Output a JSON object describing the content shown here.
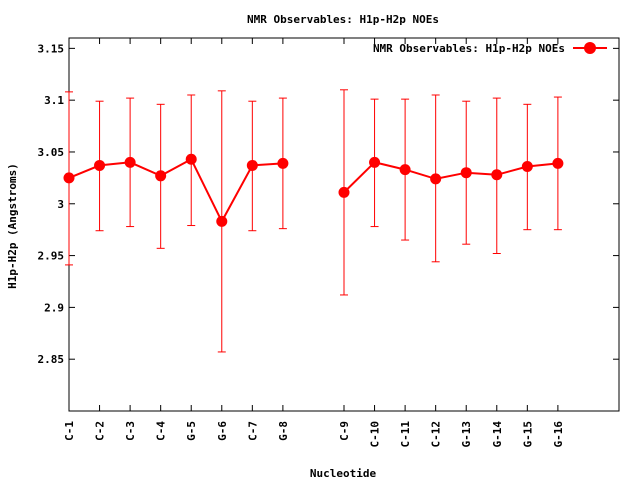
{
  "chart_data": {
    "type": "line",
    "title": "NMR Observables: H1p-H2p NOEs",
    "xlabel": "Nucleotide",
    "ylabel": "H1p-H2p (Angstroms)",
    "ylim": [
      2.8,
      3.16
    ],
    "yticks": [
      {
        "value": 2.85,
        "label": "2.85"
      },
      {
        "value": 2.9,
        "label": "2.9"
      },
      {
        "value": 2.95,
        "label": "2.95"
      },
      {
        "value": 3.0,
        "label": "3"
      },
      {
        "value": 3.05,
        "label": "3.05"
      },
      {
        "value": 3.1,
        "label": "3.1"
      },
      {
        "value": 3.15,
        "label": "3.15"
      }
    ],
    "xlim": [
      1,
      19
    ],
    "grid": false,
    "legend_position": "top-right",
    "color": "#ff0000",
    "series": [
      {
        "name": "NMR Observables: H1p-H2p NOEs",
        "segments": [
          {
            "points": [
              {
                "x": 1,
                "label": "C-1",
                "y": 3.025,
                "low": 2.941,
                "high": 3.108
              },
              {
                "x": 2,
                "label": "C-2",
                "y": 3.037,
                "low": 2.974,
                "high": 3.099
              },
              {
                "x": 3,
                "label": "C-3",
                "y": 3.04,
                "low": 2.978,
                "high": 3.102
              },
              {
                "x": 4,
                "label": "C-4",
                "y": 3.027,
                "low": 2.957,
                "high": 3.096
              },
              {
                "x": 5,
                "label": "G-5",
                "y": 3.043,
                "low": 2.979,
                "high": 3.105
              },
              {
                "x": 6,
                "label": "G-6",
                "y": 2.983,
                "low": 2.857,
                "high": 3.109
              },
              {
                "x": 7,
                "label": "C-7",
                "y": 3.037,
                "low": 2.974,
                "high": 3.099
              },
              {
                "x": 8,
                "label": "G-8",
                "y": 3.039,
                "low": 2.976,
                "high": 3.102
              }
            ]
          },
          {
            "points": [
              {
                "x": 10,
                "label": "C-9",
                "y": 3.011,
                "low": 2.912,
                "high": 3.11
              },
              {
                "x": 11,
                "label": "C-10",
                "y": 3.04,
                "low": 2.978,
                "high": 3.101
              },
              {
                "x": 12,
                "label": "C-11",
                "y": 3.033,
                "low": 2.965,
                "high": 3.101
              },
              {
                "x": 13,
                "label": "C-12",
                "y": 3.024,
                "low": 2.944,
                "high": 3.105
              },
              {
                "x": 14,
                "label": "G-13",
                "y": 3.03,
                "low": 2.961,
                "high": 3.099
              },
              {
                "x": 15,
                "label": "G-14",
                "y": 3.028,
                "low": 2.952,
                "high": 3.102
              },
              {
                "x": 16,
                "label": "G-15",
                "y": 3.036,
                "low": 2.975,
                "high": 3.096
              },
              {
                "x": 17,
                "label": "G-16",
                "y": 3.039,
                "low": 2.975,
                "high": 3.103
              }
            ]
          }
        ]
      }
    ]
  }
}
